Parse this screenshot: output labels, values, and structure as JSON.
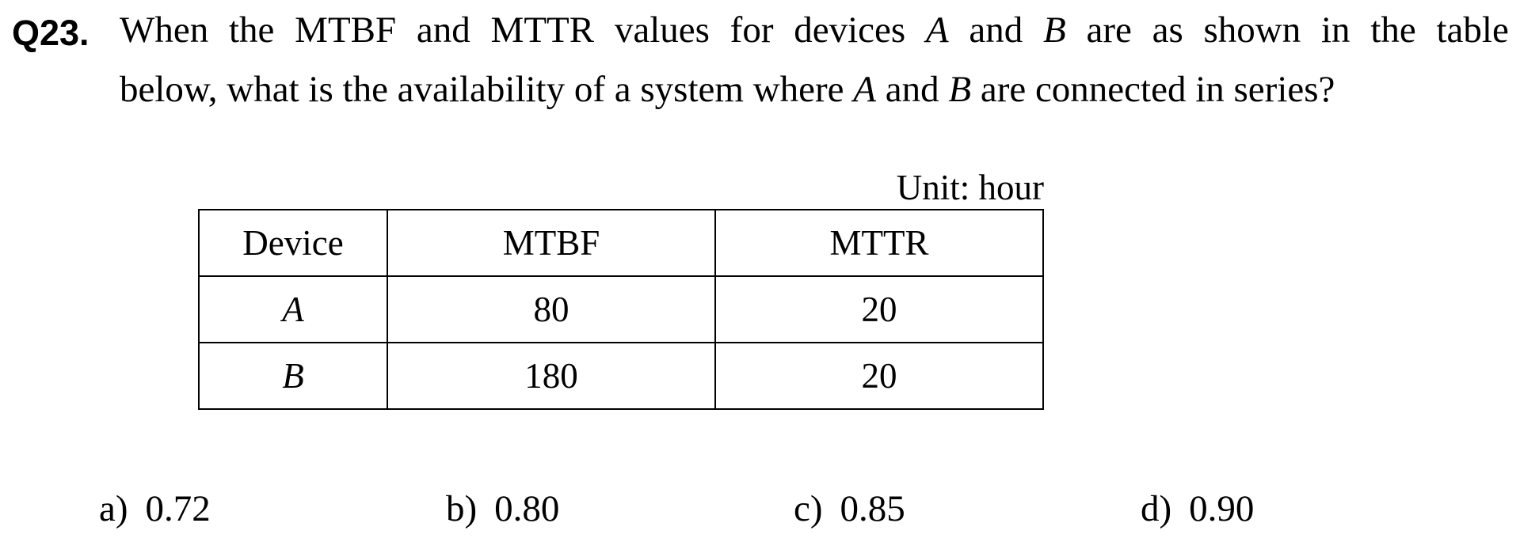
{
  "question": {
    "number": "Q23.",
    "line1_words": [
      "When",
      "the",
      "MTBF",
      "and",
      "MTTR",
      "values",
      "for",
      "devices",
      "A",
      "and",
      "B",
      "are",
      "as",
      "shown",
      "in",
      "the",
      "table"
    ],
    "line2": {
      "part1": "below, what is the availability of a system where ",
      "var_a": "A",
      "part2": " and ",
      "var_b": "B",
      "part3": " are connected in series?"
    }
  },
  "unit_note": "Unit: hour",
  "table": {
    "headers": [
      "Device",
      "MTBF",
      "MTTR"
    ],
    "rows": [
      [
        "A",
        "80",
        "20"
      ],
      [
        "B",
        "180",
        "20"
      ]
    ]
  },
  "choices": [
    {
      "letter": "a)",
      "value": "0.72"
    },
    {
      "letter": "b)",
      "value": "0.80"
    },
    {
      "letter": "c)",
      "value": "0.85"
    },
    {
      "letter": "d)",
      "value": "0.90"
    }
  ]
}
